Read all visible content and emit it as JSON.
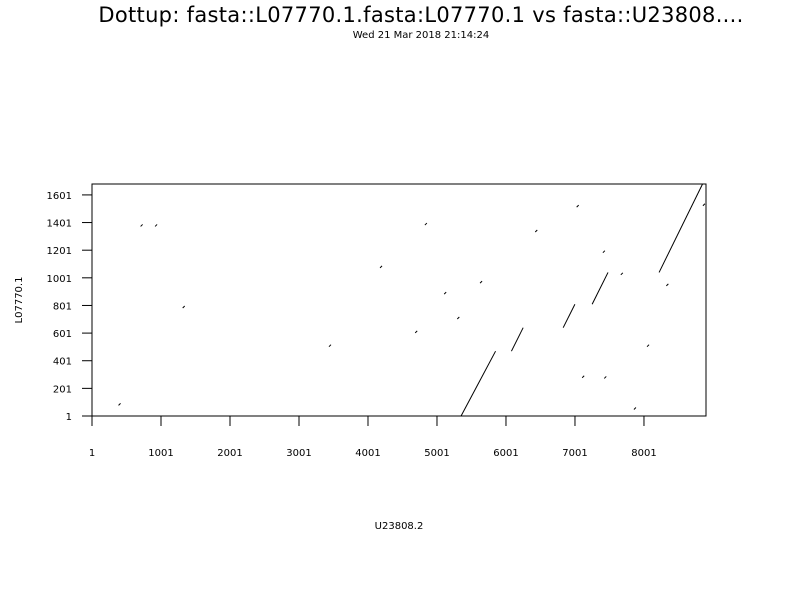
{
  "chart_data": {
    "type": "scatter",
    "title": "Dottup: fasta::L07770.1.fasta:L07770.1 vs fasta::U23808....",
    "subtitle": "Wed 21 Mar 2018 21:14:24",
    "xlabel": "U23808.2",
    "ylabel": "L07770.1",
    "xlim": [
      1,
      8900
    ],
    "ylim": [
      1,
      1680
    ],
    "xticks": [
      1,
      1001,
      2001,
      3001,
      4001,
      5001,
      6001,
      7001,
      8001
    ],
    "yticks": [
      1,
      201,
      401,
      601,
      801,
      1001,
      1201,
      1401,
      1601
    ],
    "segments": [
      {
        "x": [
          5350,
          5850
        ],
        "y": [
          1,
          470
        ]
      },
      {
        "x": [
          6080,
          6250
        ],
        "y": [
          470,
          640
        ]
      },
      {
        "x": [
          6830,
          7000
        ],
        "y": [
          640,
          810
        ]
      },
      {
        "x": [
          7250,
          7480
        ],
        "y": [
          810,
          1040
        ]
      },
      {
        "x": [
          8220,
          8850
        ],
        "y": [
          1040,
          1680
        ]
      }
    ],
    "dots": [
      {
        "x": 400,
        "y": 85
      },
      {
        "x": 720,
        "y": 1380
      },
      {
        "x": 930,
        "y": 1380
      },
      {
        "x": 1330,
        "y": 790
      },
      {
        "x": 3450,
        "y": 510
      },
      {
        "x": 4190,
        "y": 1080
      },
      {
        "x": 4700,
        "y": 610
      },
      {
        "x": 4840,
        "y": 1390
      },
      {
        "x": 5120,
        "y": 890
      },
      {
        "x": 5310,
        "y": 710
      },
      {
        "x": 5640,
        "y": 970
      },
      {
        "x": 6440,
        "y": 1340
      },
      {
        "x": 7040,
        "y": 1520
      },
      {
        "x": 7120,
        "y": 285
      },
      {
        "x": 7420,
        "y": 1190
      },
      {
        "x": 7440,
        "y": 280
      },
      {
        "x": 7680,
        "y": 1030
      },
      {
        "x": 7870,
        "y": 55
      },
      {
        "x": 8060,
        "y": 510
      },
      {
        "x": 8340,
        "y": 950
      },
      {
        "x": 8870,
        "y": 1530
      }
    ]
  }
}
